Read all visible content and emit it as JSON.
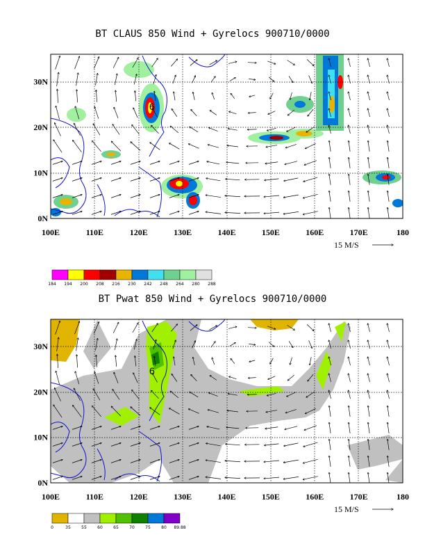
{
  "page_titles": {
    "top": "BT CLAUS 850 Wind + Gyrelocs 900710/0000",
    "bottom": "BT Pwat 850 Wind + Gyrelocs 900710/0000"
  },
  "vector_reference": "15 M/S",
  "gyre_marker": "6",
  "chart_data": [
    {
      "type": "heatmap",
      "title": "BT CLAUS 850 Wind + Gyrelocs 900710/0000",
      "x_ticks": [
        "100E",
        "110E",
        "120E",
        "130E",
        "140E",
        "150E",
        "160E",
        "170E",
        "180"
      ],
      "y_ticks": [
        "0N",
        "10N",
        "20N",
        "30N"
      ],
      "xlim": [
        100,
        180
      ],
      "ylim": [
        0,
        36
      ],
      "legend": {
        "values": [
          "184",
          "194",
          "200",
          "208",
          "216",
          "230",
          "242",
          "248",
          "264",
          "280",
          "288"
        ],
        "colors": [
          "#ff00ff",
          "#ffff00",
          "#ff0000",
          "#a00000",
          "#e8b400",
          "#0078d8",
          "#40e0f0",
          "#70d090",
          "#a0f0a0",
          "#e0e0e0"
        ]
      },
      "overlay": "850 hPa wind vectors",
      "gyre_location": {
        "lon": 122.5,
        "lat": 25
      }
    },
    {
      "type": "heatmap",
      "title": "BT Pwat 850 Wind + Gyrelocs 900710/0000",
      "x_ticks": [
        "100E",
        "110E",
        "120E",
        "130E",
        "140E",
        "150E",
        "160E",
        "170E",
        "180"
      ],
      "y_ticks": [
        "0N",
        "10N",
        "20N",
        "30N"
      ],
      "xlim": [
        100,
        180
      ],
      "ylim": [
        0,
        36
      ],
      "legend": {
        "values": [
          "0",
          "35",
          "55",
          "60",
          "65",
          "70",
          "75",
          "80",
          "89.88"
        ],
        "colors": [
          "#e0b400",
          "#ffffff",
          "#c0c0c0",
          "#a0f000",
          "#50c000",
          "#108000",
          "#0078d8",
          "#8000c8"
        ]
      },
      "overlay": "850 hPa wind vectors",
      "gyre_location": {
        "lon": 122.5,
        "lat": 25
      }
    }
  ]
}
